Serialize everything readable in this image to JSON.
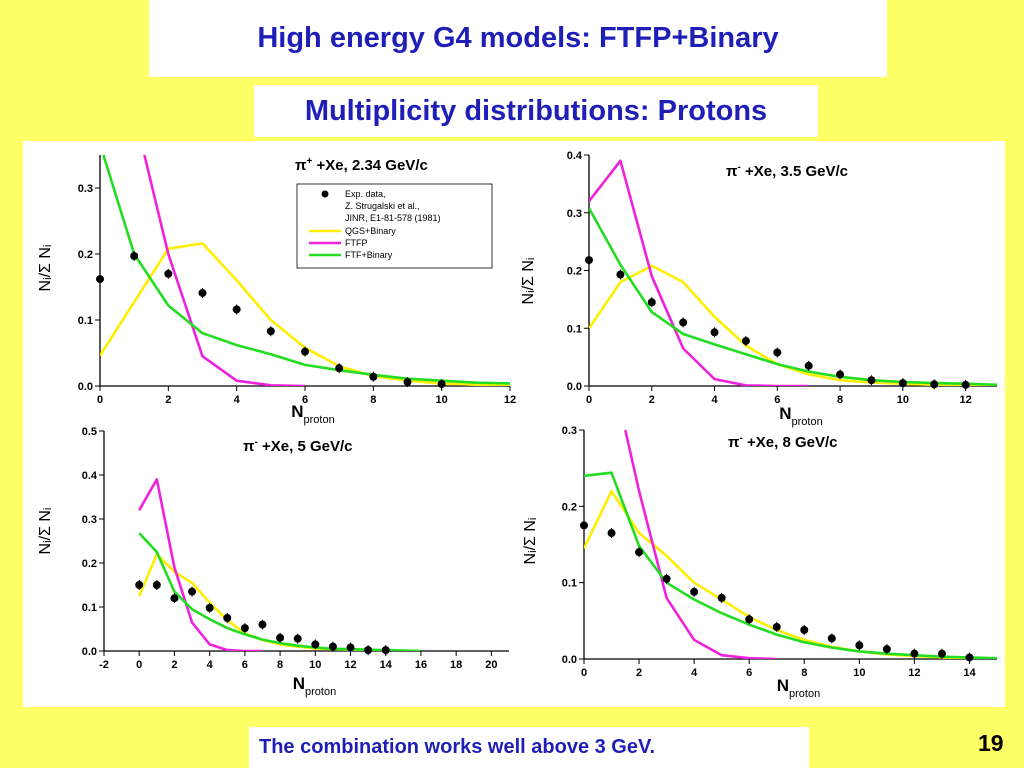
{
  "slide": {
    "title": "High energy G4 models: FTFP+Binary",
    "subtitle": "Multiplicity distributions: Protons",
    "caption": "The combination works well above 3 GeV.",
    "page_number": "19"
  },
  "colors": {
    "background": "#FFFF66",
    "text_blue": "#1F1FB8",
    "qgs": "#FFEE00",
    "ftfp": "#EE22DD",
    "ftf": "#22DD22",
    "data": "#000000"
  },
  "chart_data": [
    {
      "type": "line",
      "title": "π⁺ +Xe, 2.34 GeV/c",
      "title_parts": [
        "π",
        "+",
        " +Xe, 2.34 GeV/c"
      ],
      "xlabel": "N",
      "xlabel_sub": "proton",
      "ylabel": "Nᵢ/Σ Nᵢ",
      "xlim": [
        0,
        12
      ],
      "ylim": [
        0,
        0.35
      ],
      "xticks": [
        "0",
        "2",
        "4",
        "6",
        "8",
        "10",
        "12"
      ],
      "yticks": [
        "0.0",
        "0.1",
        "0.2",
        "0.3"
      ],
      "legend": {
        "position": "top-right",
        "entries": [
          "Exp. data,",
          "Z. Strugalski et al.,",
          "JINR, E1-81-578 (1981)",
          "QGS+Binary",
          "FTFP",
          "FTF+Binary"
        ]
      },
      "data_points": {
        "x": [
          0,
          1,
          2,
          3,
          4,
          5,
          6,
          7,
          8,
          9,
          10
        ],
        "y": [
          0.162,
          0.197,
          0.17,
          0.141,
          0.116,
          0.083,
          0.052,
          0.027,
          0.014,
          0.006,
          0.003
        ]
      },
      "series": [
        {
          "name": "QGS+Binary",
          "color": "#FFEE00",
          "x": [
            0,
            2,
            3,
            4,
            5,
            6,
            7,
            8,
            9,
            10,
            11,
            12
          ],
          "y": [
            0.046,
            0.208,
            0.216,
            0.16,
            0.1,
            0.058,
            0.03,
            0.015,
            0.008,
            0.004,
            0.002,
            0.001
          ]
        },
        {
          "name": "FTFP",
          "color": "#EE22DD",
          "x": [
            1.3,
            2,
            3,
            4,
            5,
            6
          ],
          "y": [
            0.35,
            0.2,
            0.045,
            0.008,
            0.001,
            0.0
          ]
        },
        {
          "name": "FTF+Binary",
          "color": "#22DD22",
          "x": [
            0.1,
            1,
            2,
            3,
            4,
            5,
            6,
            7,
            8,
            9,
            10,
            11,
            12
          ],
          "y": [
            0.35,
            0.2,
            0.122,
            0.08,
            0.062,
            0.048,
            0.032,
            0.024,
            0.017,
            0.011,
            0.008,
            0.005,
            0.004
          ]
        }
      ]
    },
    {
      "type": "line",
      "title": "π⁻ +Xe, 3.5 GeV/c",
      "title_parts": [
        "π",
        "-",
        " +Xe, 3.5 GeV/c"
      ],
      "xlabel": "N",
      "xlabel_sub": "proton",
      "ylabel": "Nᵢ/Σ Nᵢ",
      "xlim": [
        0,
        13
      ],
      "ylim": [
        0,
        0.4
      ],
      "xticks": [
        "0",
        "2",
        "4",
        "6",
        "8",
        "10",
        "12"
      ],
      "yticks": [
        "0.0",
        "0.1",
        "0.2",
        "0.3",
        "0.4"
      ],
      "data_points": {
        "x": [
          0,
          1,
          2,
          3,
          4,
          5,
          6,
          7,
          8,
          9,
          10,
          11,
          12
        ],
        "y": [
          0.218,
          0.193,
          0.145,
          0.11,
          0.093,
          0.078,
          0.058,
          0.035,
          0.02,
          0.01,
          0.005,
          0.003,
          0.002
        ]
      },
      "series": [
        {
          "name": "QGS+Binary",
          "color": "#FFEE00",
          "x": [
            0,
            1,
            2,
            3,
            4,
            5,
            6,
            7,
            8,
            9,
            10,
            11,
            12,
            13
          ],
          "y": [
            0.1,
            0.18,
            0.208,
            0.18,
            0.12,
            0.07,
            0.038,
            0.02,
            0.01,
            0.006,
            0.004,
            0.002,
            0.001,
            0.0
          ]
        },
        {
          "name": "FTFP",
          "color": "#EE22DD",
          "x": [
            0,
            1,
            2,
            3,
            4,
            5,
            6,
            7
          ],
          "y": [
            0.32,
            0.39,
            0.19,
            0.065,
            0.012,
            0.001,
            0.0,
            0.0
          ]
        },
        {
          "name": "FTF+Binary",
          "color": "#22DD22",
          "x": [
            0,
            1,
            2,
            3,
            4,
            5,
            6,
            7,
            8,
            9,
            10,
            11,
            12,
            13
          ],
          "y": [
            0.308,
            0.21,
            0.128,
            0.09,
            0.072,
            0.055,
            0.038,
            0.025,
            0.016,
            0.01,
            0.007,
            0.005,
            0.004,
            0.002
          ]
        }
      ]
    },
    {
      "type": "line",
      "title": "π⁻ +Xe, 5 GeV/c",
      "title_parts": [
        "π",
        "-",
        " +Xe, 5 GeV/c"
      ],
      "xlabel": "N",
      "xlabel_sub": "proton",
      "ylabel": "Nᵢ/Σ Nᵢ",
      "xlim": [
        -2,
        21
      ],
      "ylim": [
        0,
        0.5
      ],
      "xticks": [
        "-2",
        "0",
        "2",
        "4",
        "6",
        "8",
        "10",
        "12",
        "14",
        "16",
        "18",
        "20"
      ],
      "yticks": [
        "0.0",
        "0.1",
        "0.2",
        "0.3",
        "0.4",
        "0.5"
      ],
      "data_points": {
        "x": [
          0,
          1,
          2,
          3,
          4,
          5,
          6,
          7,
          8,
          9,
          10,
          11,
          12,
          13,
          14
        ],
        "y": [
          0.15,
          0.15,
          0.12,
          0.135,
          0.098,
          0.075,
          0.052,
          0.06,
          0.03,
          0.028,
          0.015,
          0.01,
          0.008,
          0.002,
          0.002
        ]
      },
      "series": [
        {
          "name": "QGS+Binary",
          "color": "#FFEE00",
          "x": [
            0,
            1,
            2,
            3,
            4,
            5,
            6,
            7,
            8,
            9,
            10,
            11,
            12,
            13,
            14,
            15,
            16
          ],
          "y": [
            0.125,
            0.22,
            0.18,
            0.155,
            0.11,
            0.07,
            0.04,
            0.025,
            0.015,
            0.01,
            0.006,
            0.004,
            0.003,
            0.002,
            0.001,
            0.0,
            0.0
          ]
        },
        {
          "name": "FTFP",
          "color": "#EE22DD",
          "x": [
            0,
            1,
            2,
            3,
            4,
            5,
            6,
            7
          ],
          "y": [
            0.32,
            0.39,
            0.19,
            0.065,
            0.015,
            0.002,
            0.0,
            0.0
          ]
        },
        {
          "name": "FTF+Binary",
          "color": "#22DD22",
          "x": [
            0,
            1,
            2,
            3,
            4,
            5,
            6,
            7,
            8,
            9,
            10,
            11,
            12,
            13,
            14,
            15,
            16
          ],
          "y": [
            0.268,
            0.225,
            0.135,
            0.095,
            0.072,
            0.052,
            0.038,
            0.026,
            0.018,
            0.012,
            0.008,
            0.005,
            0.004,
            0.003,
            0.002,
            0.001,
            0.0
          ]
        }
      ]
    },
    {
      "type": "line",
      "title": "π⁻ +Xe, 8 GeV/c",
      "title_parts": [
        "π",
        "-",
        " +Xe, 8 GeV/c"
      ],
      "xlabel": "N",
      "xlabel_sub": "proton",
      "ylabel": "Nᵢ/Σ Nᵢ",
      "xlim": [
        0,
        15
      ],
      "ylim": [
        0,
        0.3
      ],
      "xticks": [
        "0",
        "2",
        "4",
        "6",
        "8",
        "10",
        "12",
        "14"
      ],
      "yticks": [
        "0.0",
        "0.1",
        "0.2",
        "0.3"
      ],
      "data_points": {
        "x": [
          0,
          1,
          2,
          3,
          4,
          5,
          6,
          7,
          8,
          9,
          10,
          11,
          12,
          13,
          14
        ],
        "y": [
          0.175,
          0.165,
          0.14,
          0.105,
          0.088,
          0.08,
          0.052,
          0.042,
          0.038,
          0.027,
          0.018,
          0.013,
          0.007,
          0.007,
          0.002
        ]
      },
      "series": [
        {
          "name": "QGS+Binary",
          "color": "#FFEE00",
          "x": [
            0,
            1,
            2,
            3,
            4,
            5,
            6,
            7,
            8,
            9,
            10,
            11,
            12,
            13,
            14,
            15
          ],
          "y": [
            0.145,
            0.22,
            0.165,
            0.135,
            0.1,
            0.078,
            0.055,
            0.038,
            0.025,
            0.016,
            0.01,
            0.006,
            0.004,
            0.002,
            0.001,
            0.0
          ]
        },
        {
          "name": "FTFP",
          "color": "#EE22DD",
          "x": [
            1.5,
            2,
            3,
            4,
            5,
            6,
            7
          ],
          "y": [
            0.3,
            0.22,
            0.08,
            0.025,
            0.005,
            0.001,
            0.0
          ]
        },
        {
          "name": "FTF+Binary",
          "color": "#22DD22",
          "x": [
            0,
            1,
            2,
            3,
            4,
            5,
            6,
            7,
            8,
            9,
            10,
            11,
            12,
            13,
            14,
            15
          ],
          "y": [
            0.24,
            0.244,
            0.148,
            0.1,
            0.078,
            0.06,
            0.045,
            0.032,
            0.022,
            0.015,
            0.01,
            0.007,
            0.005,
            0.003,
            0.002,
            0.001
          ]
        }
      ]
    }
  ]
}
